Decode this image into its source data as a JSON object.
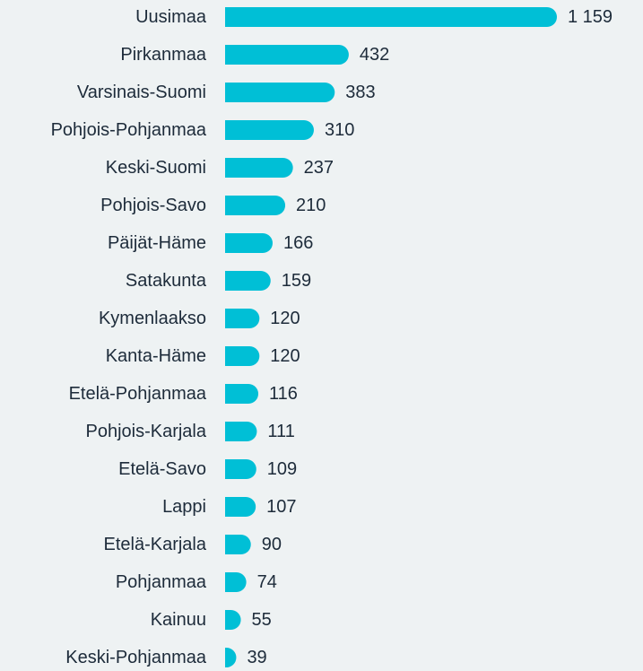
{
  "chart_data": {
    "type": "bar",
    "orientation": "horizontal",
    "color": "#00bfd6",
    "categories": [
      "Uusimaa",
      "Pirkanmaa",
      "Varsinais-Suomi",
      "Pohjois-Pohjanmaa",
      "Keski-Suomi",
      "Pohjois-Savo",
      "Päijät-Häme",
      "Satakunta",
      "Kymenlaakso",
      "Kanta-Häme",
      "Etelä-Pohjanmaa",
      "Pohjois-Karjala",
      "Etelä-Savo",
      "Lappi",
      "Etelä-Karjala",
      "Pohjanmaa",
      "Kainuu",
      "Keski-Pohjanmaa"
    ],
    "values": [
      1159,
      432,
      383,
      310,
      237,
      210,
      166,
      159,
      120,
      120,
      116,
      111,
      109,
      107,
      90,
      74,
      55,
      39
    ],
    "value_labels": [
      "1 159",
      "432",
      "383",
      "310",
      "237",
      "210",
      "166",
      "159",
      "120",
      "120",
      "116",
      "111",
      "109",
      "107",
      "90",
      "74",
      "55",
      "39"
    ]
  }
}
